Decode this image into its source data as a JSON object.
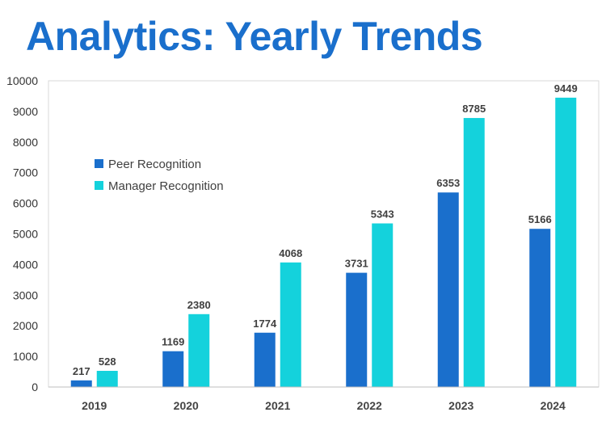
{
  "header": {
    "title": "Analytics: Yearly Trends"
  },
  "chart_data": {
    "type": "bar",
    "title": "Analytics: Yearly Trends",
    "xlabel": "",
    "ylabel": "",
    "ylim": [
      0,
      10000
    ],
    "yticks": [
      0,
      1000,
      2000,
      3000,
      4000,
      5000,
      6000,
      7000,
      8000,
      9000,
      10000
    ],
    "grid": false,
    "legend_position": "upper-left",
    "categories": [
      "2019",
      "2020",
      "2021",
      "2022",
      "2023",
      "2024"
    ],
    "series": [
      {
        "name": "Peer Recognition",
        "color": "#1a6fcc",
        "values": [
          217,
          1169,
          1774,
          3731,
          6353,
          5166
        ]
      },
      {
        "name": "Manager Recognition",
        "color": "#14d2dc",
        "values": [
          528,
          2380,
          4068,
          5343,
          8785,
          9449
        ]
      }
    ]
  }
}
